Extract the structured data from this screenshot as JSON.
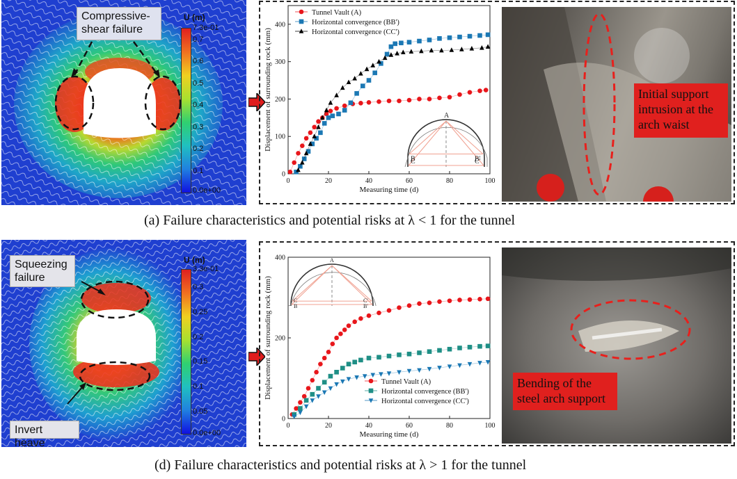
{
  "panel_a": {
    "caption": "(a) Failure characteristics and potential risks at λ < 1 for the tunnel",
    "sim": {
      "annotation": "Compressive-\nshear failure",
      "colorbar": {
        "title": "U (m)",
        "labels": [
          "7.3e-01",
          "0.7",
          "0.6",
          "0.5",
          "0.4",
          "0.3",
          "0.2",
          "0.1",
          "0.0e+00"
        ]
      }
    },
    "photo_label": "Initial support intrusion at the arch waist",
    "chart_data": {
      "type": "scatter",
      "xlabel": "Measuring time (d)",
      "ylabel": "Displacement of surrounding rock (mm)",
      "xlim": [
        0,
        100
      ],
      "ylim": [
        0,
        450
      ],
      "xticks": [
        "0",
        "20",
        "40",
        "60",
        "80",
        "100"
      ],
      "yticks": [
        "0",
        "100",
        "200",
        "300",
        "400"
      ],
      "legend_position": "top-left",
      "series": [
        {
          "name": "Tunnel Vault (A)",
          "color": "#e8161b",
          "marker": "circle",
          "x": [
            1,
            3,
            5,
            7,
            9,
            11,
            13,
            15,
            17,
            19,
            21,
            24,
            28,
            32,
            36,
            40,
            45,
            50,
            55,
            60,
            65,
            70,
            75,
            80,
            85,
            90,
            95,
            98
          ],
          "y": [
            5,
            30,
            55,
            75,
            95,
            110,
            125,
            140,
            150,
            160,
            168,
            175,
            182,
            187,
            189,
            191,
            193,
            195,
            195,
            197,
            200,
            200,
            203,
            205,
            212,
            218,
            222,
            224
          ]
        },
        {
          "name": "Horizontal convergence (BB')",
          "color": "#1b78b4",
          "marker": "square",
          "x": [
            4,
            6,
            8,
            10,
            12,
            14,
            16,
            18,
            20,
            22,
            25,
            28,
            31,
            34,
            37,
            40,
            43,
            46,
            49,
            51,
            53,
            56,
            60,
            65,
            70,
            75,
            80,
            85,
            90,
            95,
            99
          ],
          "y": [
            5,
            20,
            40,
            60,
            80,
            95,
            110,
            135,
            150,
            155,
            160,
            170,
            190,
            215,
            235,
            250,
            270,
            295,
            320,
            340,
            348,
            350,
            352,
            355,
            358,
            362,
            364,
            366,
            368,
            370,
            372
          ]
        },
        {
          "name": "Horizontal convergence (CC')",
          "color": "#000000",
          "marker": "triangle",
          "x": [
            5,
            7,
            9,
            11,
            13,
            15,
            17,
            19,
            21,
            24,
            27,
            30,
            33,
            36,
            39,
            42,
            45,
            48,
            51,
            54,
            57,
            61,
            66,
            71,
            76,
            81,
            86,
            91,
            96,
            99
          ],
          "y": [
            10,
            30,
            55,
            80,
            100,
            125,
            150,
            170,
            190,
            210,
            230,
            245,
            255,
            268,
            280,
            290,
            300,
            310,
            318,
            322,
            325,
            327,
            328,
            330,
            330,
            331,
            333,
            335,
            337,
            340
          ]
        }
      ],
      "inset_labels": [
        "A",
        "B",
        "B'",
        "C",
        "C'"
      ]
    }
  },
  "panel_d": {
    "caption": "(d) Failure characteristics and potential risks at λ > 1 for the tunnel",
    "sim": {
      "annotation_top": "Squeezing\nfailure",
      "annotation_bottom": "Invert heave",
      "colorbar": {
        "title": "U (m)",
        "labels": [
          "3.3e-01",
          "0.3",
          "0.25",
          "0.2",
          "0.15",
          "0.1",
          "0.05",
          "0.0e+00"
        ]
      }
    },
    "photo_label": "Bending of the steel arch support",
    "chart_data": {
      "type": "scatter",
      "xlabel": "Measuring time (d)",
      "ylabel": "Displacement of surrounding rock (mm)",
      "xlim": [
        0,
        100
      ],
      "ylim": [
        0,
        400
      ],
      "xticks": [
        "0",
        "20",
        "40",
        "60",
        "80",
        "100"
      ],
      "yticks": [
        "0",
        "200",
        "400"
      ],
      "legend_position": "bottom-right",
      "series": [
        {
          "name": "Tunnel Vault (A)",
          "color": "#e8161b",
          "marker": "circle",
          "x": [
            2,
            4,
            6,
            8,
            10,
            12,
            14,
            16,
            18,
            20,
            22,
            24,
            26,
            28,
            30,
            33,
            36,
            40,
            45,
            50,
            55,
            60,
            65,
            70,
            75,
            80,
            85,
            90,
            95,
            99
          ],
          "y": [
            10,
            25,
            40,
            55,
            75,
            95,
            115,
            135,
            150,
            165,
            185,
            200,
            210,
            220,
            230,
            240,
            248,
            255,
            262,
            268,
            275,
            280,
            285,
            287,
            290,
            292,
            294,
            295,
            296,
            297
          ]
        },
        {
          "name": "Horizontal convergence (BB')",
          "color": "#1f8f86",
          "marker": "square",
          "x": [
            3,
            6,
            9,
            12,
            15,
            18,
            21,
            24,
            27,
            30,
            33,
            36,
            40,
            45,
            50,
            55,
            60,
            65,
            70,
            75,
            80,
            85,
            90,
            95,
            99
          ],
          "y": [
            10,
            25,
            45,
            60,
            75,
            90,
            105,
            115,
            125,
            135,
            140,
            145,
            150,
            152,
            155,
            158,
            160,
            163,
            166,
            169,
            172,
            175,
            177,
            179,
            180
          ]
        },
        {
          "name": "Horizontal convergence (CC')",
          "color": "#1b78b4",
          "marker": "triangle-down",
          "x": [
            3,
            6,
            9,
            12,
            15,
            18,
            21,
            24,
            27,
            30,
            34,
            38,
            42,
            46,
            50,
            55,
            60,
            65,
            70,
            75,
            80,
            85,
            90,
            95,
            99
          ],
          "y": [
            5,
            15,
            30,
            45,
            55,
            65,
            75,
            85,
            92,
            98,
            102,
            105,
            108,
            110,
            112,
            115,
            118,
            120,
            123,
            126,
            129,
            132,
            135,
            138,
            140
          ]
        }
      ],
      "inset_labels": [
        "A",
        "B",
        "B'",
        "C",
        "C'"
      ]
    }
  }
}
